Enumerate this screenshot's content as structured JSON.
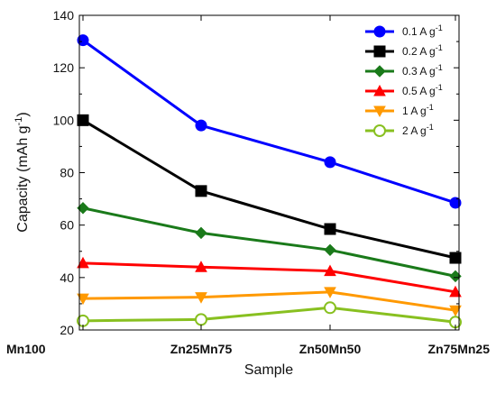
{
  "chart_data": {
    "type": "line",
    "categories": [
      "Mn100",
      "Zn25Mn75",
      "Zn50Mn50",
      "Zn75Mn25"
    ],
    "xlabel": "Sample",
    "ylabel": "Capacity (mAh g",
    "ylabel_sup": "-1",
    "ylabel_close": ")",
    "ylim": [
      20,
      140
    ],
    "yticks": [
      20,
      40,
      60,
      80,
      100,
      120,
      140
    ],
    "grid": false,
    "legend_position": "top-right",
    "series": [
      {
        "name": "0.1 A g",
        "sup": "-1",
        "color": "#0000ff",
        "marker": "circle",
        "fill": "solid",
        "values": [
          130.5,
          98,
          84,
          68.5
        ]
      },
      {
        "name": "0.2 A g",
        "sup": "-1",
        "color": "#000000",
        "marker": "square",
        "fill": "solid",
        "values": [
          100,
          73,
          58.5,
          47.5
        ]
      },
      {
        "name": "0.3 A g",
        "sup": "-1",
        "color": "#1a7a1a",
        "marker": "diamond",
        "fill": "solid",
        "values": [
          66.5,
          57,
          50.5,
          40.5
        ]
      },
      {
        "name": "0.5 A g",
        "sup": "-1",
        "color": "#ff0000",
        "marker": "triangle-up",
        "fill": "solid",
        "values": [
          45.5,
          44,
          42.5,
          34.5
        ]
      },
      {
        "name": "1 A g",
        "sup": "-1",
        "color": "#ff9900",
        "marker": "triangle-down",
        "fill": "solid",
        "values": [
          32,
          32.5,
          34.5,
          27.5
        ]
      },
      {
        "name": "2 A g",
        "sup": "-1",
        "color": "#88c020",
        "marker": "circle",
        "fill": "hollow",
        "values": [
          23.5,
          24,
          28.5,
          23
        ]
      }
    ]
  }
}
